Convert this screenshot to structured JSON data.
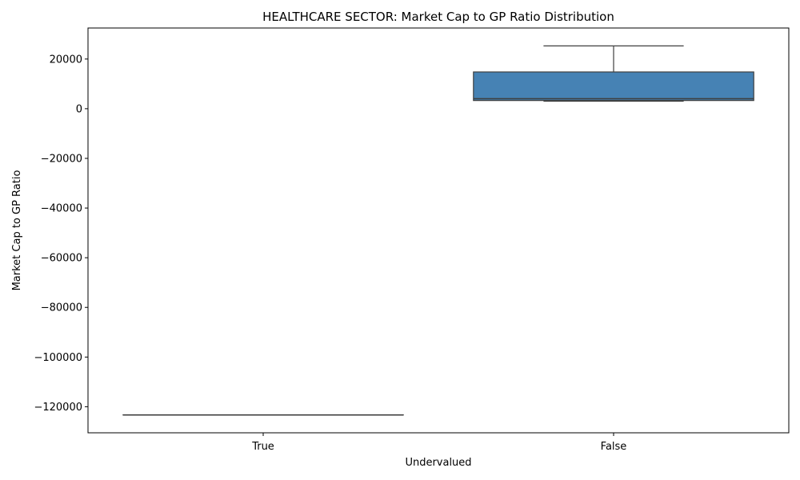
{
  "chart_data": {
    "type": "box",
    "title": "HEALTHCARE SECTOR: Market Cap to GP Ratio Distribution",
    "xlabel": "Undervalued",
    "ylabel": "Market Cap to GP Ratio",
    "categories": [
      "True",
      "False"
    ],
    "ylim": [
      -130500,
      32500
    ],
    "yticks": [
      20000,
      0,
      -20000,
      -40000,
      -60000,
      -80000,
      -100000,
      -120000
    ],
    "ytick_labels": [
      "20000",
      "0",
      "−20000",
      "−40000",
      "−60000",
      "−80000",
      "−100000",
      "−120000"
    ],
    "grid": false,
    "box_color": "#4682b4",
    "line_color": "#3f3f3f",
    "boxes": [
      {
        "category": "True",
        "whislo": -123300,
        "q1": -123300,
        "median": -123300,
        "q3": -123300,
        "whishi": -123300
      },
      {
        "category": "False",
        "whislo": 3000,
        "q1": 3300,
        "median": 4000,
        "q3": 14800,
        "whishi": 25300
      }
    ]
  }
}
